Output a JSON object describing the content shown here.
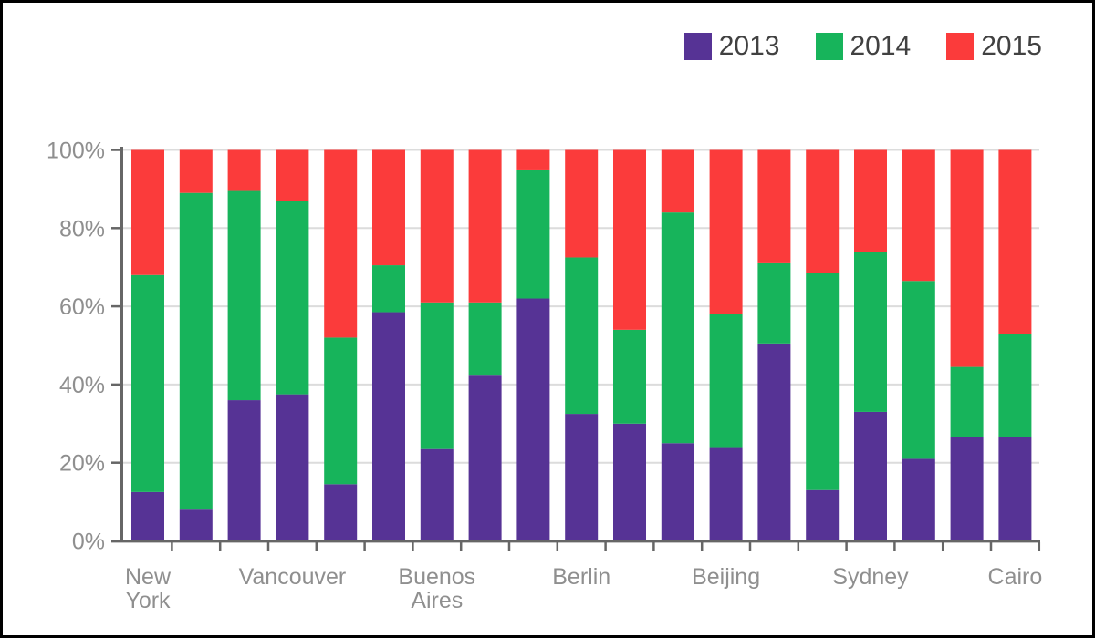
{
  "chart_data": {
    "type": "bar",
    "stacked": true,
    "percent_stacked": true,
    "title": "",
    "categories": [
      "New York",
      "",
      "",
      "Vancouver",
      "",
      "",
      "Buenos Aires",
      "",
      "",
      "Berlin",
      "",
      "",
      "Beijing",
      "",
      "",
      "Sydney",
      "",
      "",
      "Cairo"
    ],
    "series": [
      {
        "name": "2013",
        "color": "#563395",
        "values": [
          12.5,
          8,
          36,
          37.5,
          14.5,
          58.5,
          23.5,
          42.5,
          62,
          32.5,
          30,
          25,
          24,
          50.5,
          13,
          33,
          21,
          26.5,
          26.5
        ]
      },
      {
        "name": "2014",
        "color": "#17b45b",
        "values": [
          55.5,
          81,
          53.5,
          49.5,
          37.5,
          12,
          37.5,
          18.5,
          33,
          40,
          24,
          59,
          34,
          20.5,
          55.5,
          41,
          45.5,
          18,
          26.5
        ]
      },
      {
        "name": "2015",
        "color": "#fb3b3b",
        "values": [
          32,
          11,
          10.5,
          13,
          48,
          29.5,
          39,
          39,
          5,
          27.5,
          46,
          16,
          42,
          29,
          31.5,
          26,
          33.5,
          55.5,
          47
        ]
      }
    ],
    "y_axis": {
      "min": 0,
      "max": 100,
      "tick_step": 20,
      "tick_labels": [
        "0%",
        "20%",
        "40%",
        "60%",
        "80%",
        "100%"
      ]
    },
    "x_axis": {
      "label_every_n_bars": 3
    },
    "legend": {
      "position": "top-right"
    },
    "grid": true
  },
  "style": {
    "axis_color": "#666666",
    "grid_color": "#dcdcdc",
    "axis_label_color": "#8f8f8f",
    "legend_text_color": "#414141",
    "background": "#ffffff",
    "border_color": "#000000"
  }
}
